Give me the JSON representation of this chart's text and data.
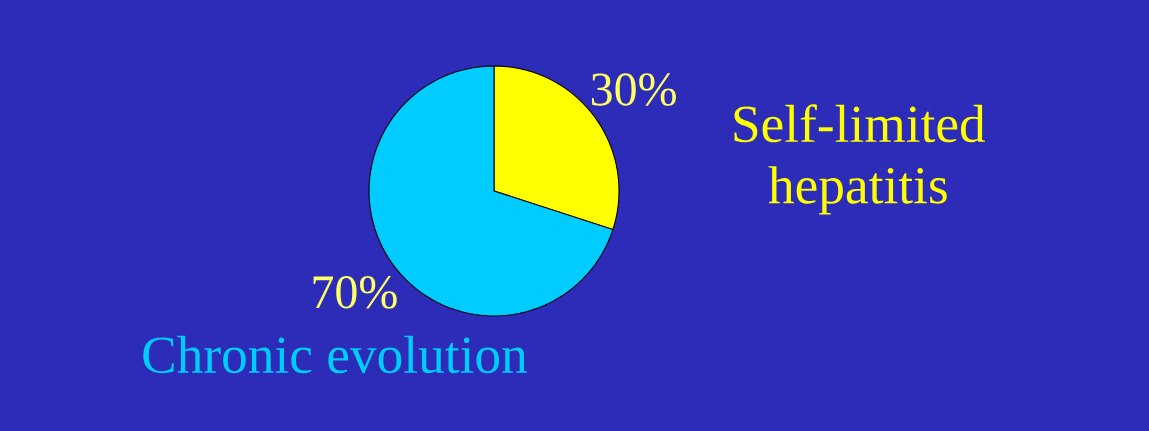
{
  "chart_data": {
    "type": "pie",
    "categories": [
      "Self-limited hepatitis",
      "Chronic evolution"
    ],
    "values": [
      30,
      70
    ],
    "colors": [
      "#ffff00",
      "#00ccff"
    ],
    "value_labels": [
      "30%",
      "70%"
    ]
  }
}
